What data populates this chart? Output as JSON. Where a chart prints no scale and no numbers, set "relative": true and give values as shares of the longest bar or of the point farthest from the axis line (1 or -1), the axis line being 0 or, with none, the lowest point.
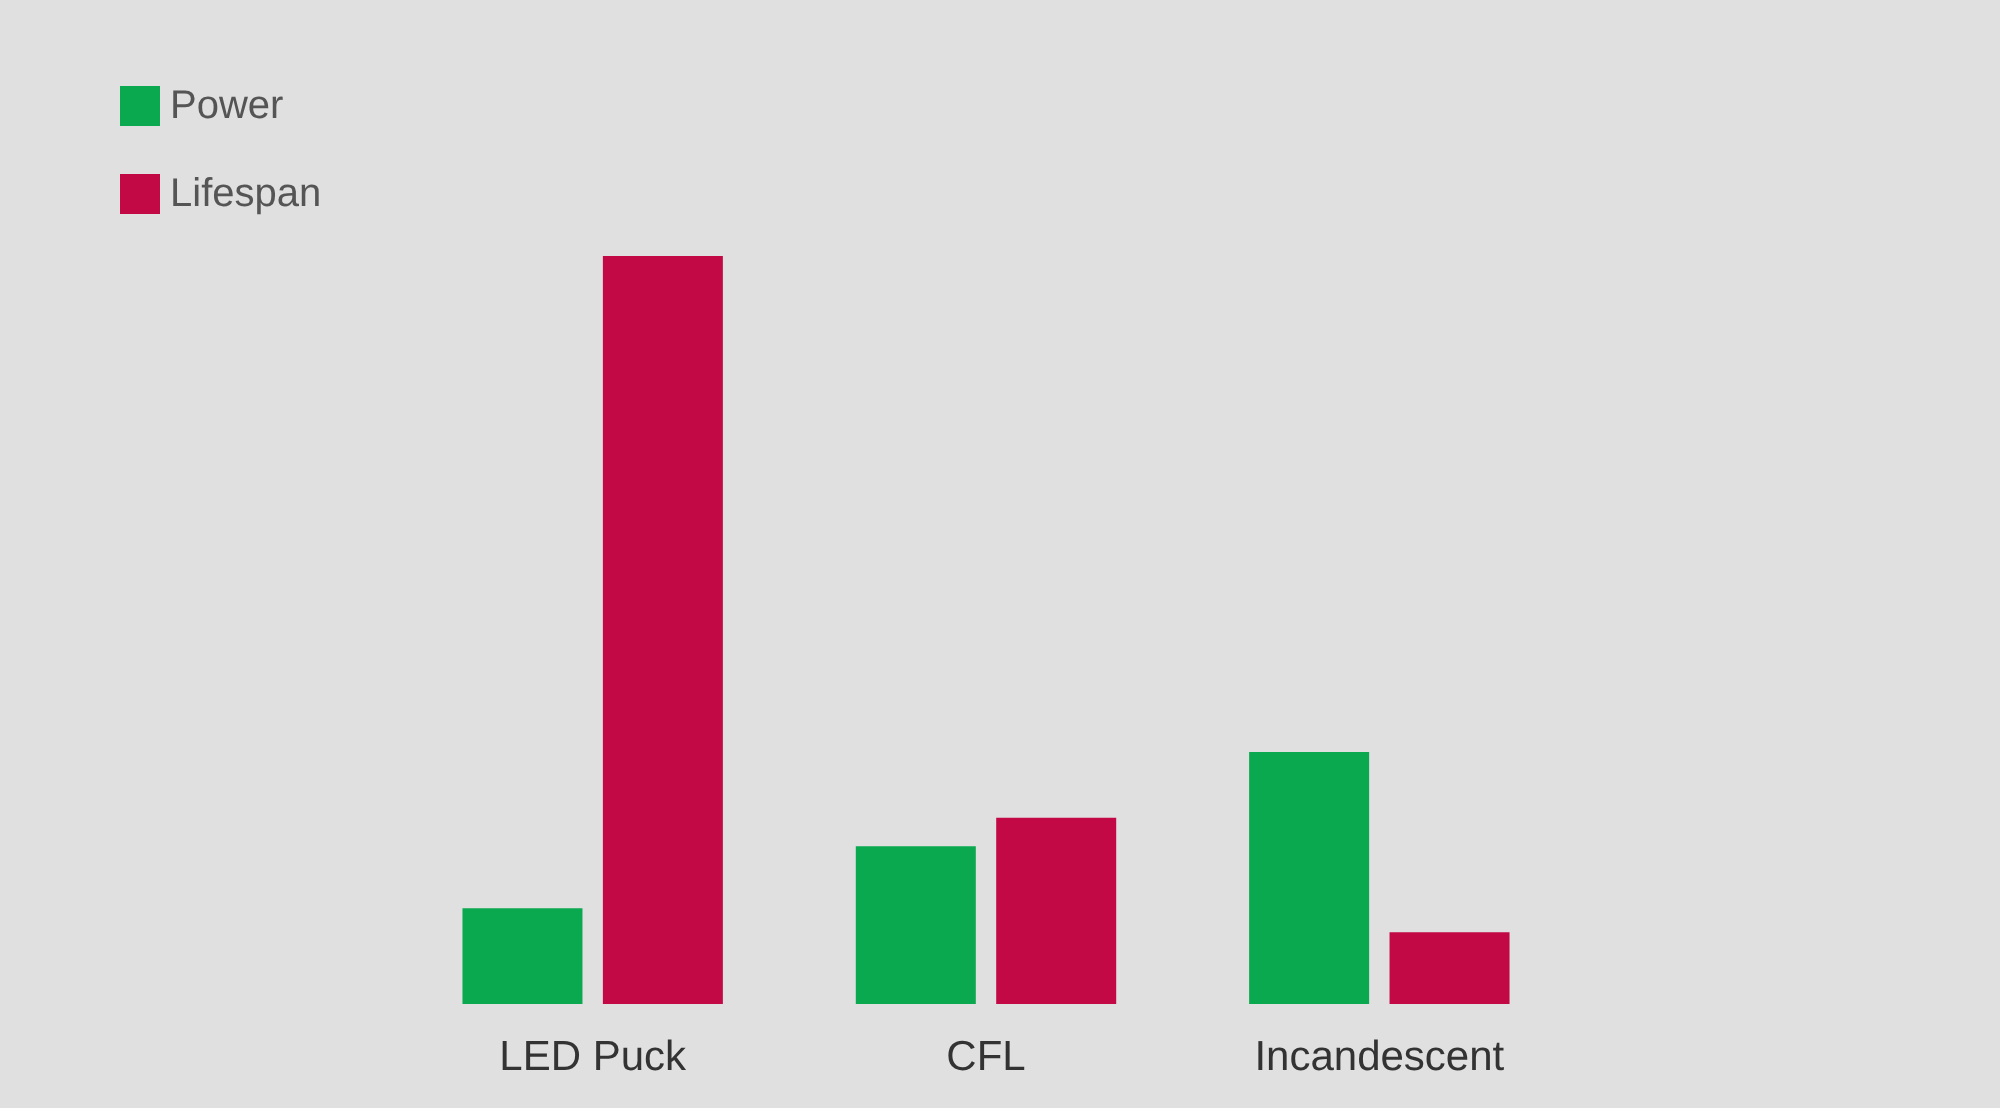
{
  "chart_data": {
    "type": "bar",
    "relative": true,
    "categories": [
      "LED Puck",
      "CFL",
      "Incandescent"
    ],
    "series": [
      {
        "name": "Power",
        "color": "#0aa84f",
        "values": [
          0.128,
          0.211,
          0.337
        ]
      },
      {
        "name": "Lifespan",
        "color": "#c20845",
        "values": [
          1,
          0.249,
          0.096
        ]
      }
    ],
    "legend": "top left"
  }
}
